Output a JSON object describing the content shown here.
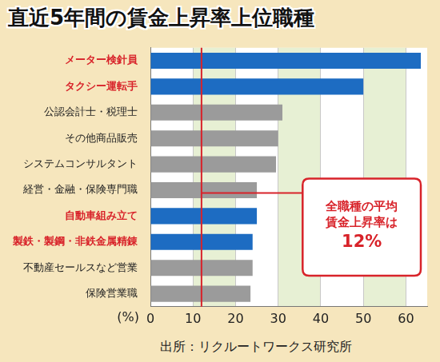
{
  "chart_data": {
    "type": "bar",
    "orientation": "horizontal",
    "title": "直近5年間の賃金上昇率上位職種",
    "source": "出所：リクルートワークス研究所",
    "x_label": "(%)",
    "categories": [
      "メーター検針員",
      "タクシー運転手",
      "公認会計士・税理士",
      "その他商品販売",
      "システムコンサルタント",
      "経営・金融・保険専門職",
      "自動車組み立て",
      "製鉄・製鋼・非鉄金属精錬",
      "不動産セールスなど営業",
      "保険営業職"
    ],
    "values": [
      63.5,
      50,
      31,
      30,
      29.5,
      25,
      25,
      24,
      24,
      23.5
    ],
    "colors": [
      "#1d6cc2",
      "#1d6cc2",
      "#9b9b9b",
      "#9b9b9b",
      "#9b9b9b",
      "#9b9b9b",
      "#1d6cc2",
      "#1d6cc2",
      "#9b9b9b",
      "#9b9b9b"
    ],
    "xlim": [
      0,
      65
    ],
    "xticks": [
      0,
      10,
      20,
      30,
      40,
      50,
      60
    ],
    "grid": true,
    "annotation": {
      "value": 12,
      "text": [
        "全職種の平均",
        "賃金上昇率は"
      ],
      "label": "12%"
    }
  }
}
